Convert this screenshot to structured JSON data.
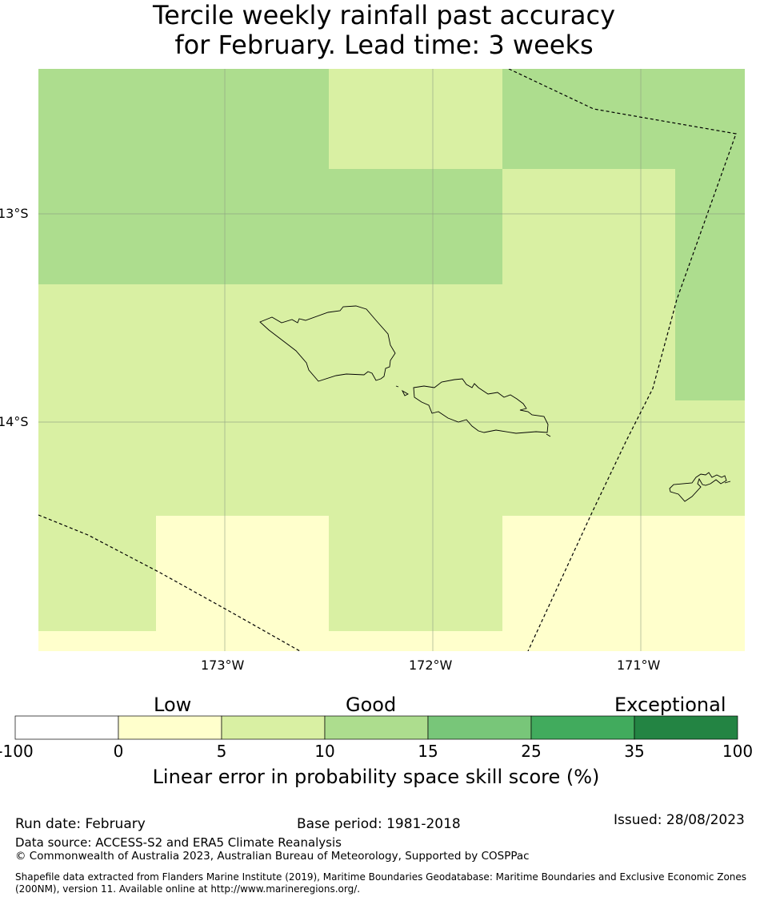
{
  "title": {
    "line1": "Tercile weekly rainfall past accuracy",
    "line2": "for February. Lead time: 3 weeks"
  },
  "map": {
    "lat_labels": [
      "13°S",
      "14°S"
    ],
    "lon_labels": [
      "173°W",
      "172°W",
      "171°W"
    ],
    "cell_colors": {
      "0-5": "#ffffcc",
      "5-10": "#d9f0a3",
      "10-15": "#addd8e"
    }
  },
  "legend": {
    "category_labels": [
      "Low",
      "Good",
      "Exceptional"
    ],
    "boundaries": [
      "-100",
      "0",
      "5",
      "10",
      "15",
      "25",
      "35",
      "100"
    ],
    "colors": [
      "#ffffff",
      "#ffffcc",
      "#d9f0a3",
      "#addd8e",
      "#78c679",
      "#41ab5d",
      "#238443"
    ],
    "xlabel": "Linear error in probability space skill score (%)"
  },
  "footer": {
    "run_date": "Run date: February",
    "base_period": "Base period: 1981-2018",
    "issued": "Issued: 28/08/2023",
    "data_source": "Data source: ACCESS-S2 and ERA5 Climate Reanalysis",
    "copyright": "© Commonwealth of Australia 2023, Australian Bureau of Meteorology, Supported by COSPPac",
    "shapefile_line1": "Shapefile data extracted from Flanders Marine Institute (2019), Maritime Boundaries Geodatabase: Maritime Boundaries and Exclusive Economic Zones",
    "shapefile_line2": "(200NM), version 11. Available online at http://www.marineregions.org/."
  }
}
